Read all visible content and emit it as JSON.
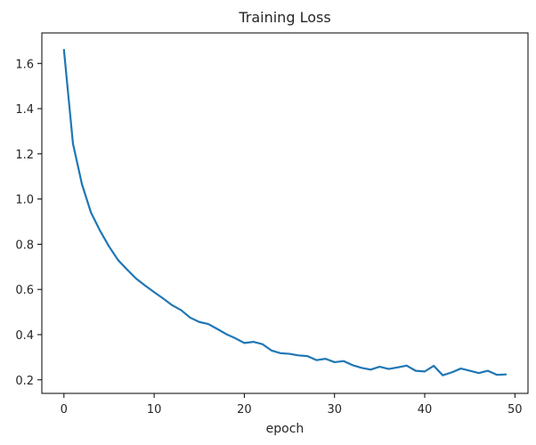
{
  "chart_data": {
    "type": "line",
    "title": "Training Loss",
    "xlabel": "epoch",
    "ylabel": "",
    "xlim": [
      -2.45,
      51.45
    ],
    "ylim": [
      0.14,
      1.735
    ],
    "xticks": [
      0,
      10,
      20,
      30,
      40,
      50
    ],
    "yticks": [
      0.2,
      0.4,
      0.6,
      0.8,
      1.0,
      1.2,
      1.4,
      1.6
    ],
    "grid": false,
    "series": [
      {
        "color": "#1f77b4",
        "x": [
          0,
          1,
          2,
          3,
          4,
          5,
          6,
          7,
          8,
          9,
          10,
          11,
          12,
          13,
          14,
          15,
          16,
          17,
          18,
          19,
          20,
          21,
          22,
          23,
          24,
          25,
          26,
          27,
          28,
          29,
          30,
          31,
          32,
          33,
          34,
          35,
          36,
          37,
          38,
          39,
          40,
          41,
          42,
          43,
          44,
          45,
          46,
          47,
          48,
          49
        ],
        "y": [
          1.66,
          1.245,
          1.065,
          0.94,
          0.86,
          0.79,
          0.73,
          0.688,
          0.648,
          0.617,
          0.588,
          0.56,
          0.53,
          0.508,
          0.475,
          0.456,
          0.447,
          0.425,
          0.402,
          0.384,
          0.363,
          0.368,
          0.358,
          0.33,
          0.318,
          0.315,
          0.308,
          0.305,
          0.287,
          0.293,
          0.278,
          0.283,
          0.265,
          0.253,
          0.245,
          0.258,
          0.248,
          0.255,
          0.263,
          0.24,
          0.237,
          0.262,
          0.22,
          0.233,
          0.25,
          0.24,
          0.23,
          0.24,
          0.222,
          0.224
        ]
      }
    ]
  }
}
